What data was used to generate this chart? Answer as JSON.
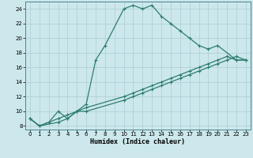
{
  "xlabel": "Humidex (Indice chaleur)",
  "bg_color": "#cce8ec",
  "grid_color": "#aacdd4",
  "line_color": "#2e7d6e",
  "xlim": [
    -0.5,
    23.5
  ],
  "ylim": [
    7.5,
    25.0
  ],
  "xticks": [
    0,
    1,
    2,
    3,
    4,
    5,
    6,
    7,
    8,
    9,
    10,
    11,
    12,
    13,
    14,
    15,
    16,
    17,
    18,
    19,
    20,
    21,
    22,
    23
  ],
  "yticks": [
    8,
    10,
    12,
    14,
    16,
    18,
    20,
    22,
    24
  ],
  "series1_x": [
    0,
    1,
    2,
    3,
    4,
    5,
    6,
    7,
    8,
    10,
    11,
    12,
    13,
    14,
    15,
    16,
    17,
    18,
    19,
    20,
    22,
    23
  ],
  "series1_y": [
    9,
    8,
    8.5,
    10,
    9,
    10,
    11,
    17,
    19,
    24,
    24.5,
    24,
    24.5,
    23,
    22,
    21,
    20,
    19,
    18.5,
    19,
    17,
    17
  ],
  "series2_x": [
    0,
    1,
    3,
    4,
    5,
    6,
    10,
    11,
    12,
    13,
    14,
    15,
    16,
    17,
    18,
    19,
    20,
    21,
    22,
    23
  ],
  "series2_y": [
    9,
    8,
    8.5,
    9,
    10,
    10,
    11.5,
    12,
    12.5,
    13,
    13.5,
    14,
    14.5,
    15,
    15.5,
    16,
    16.5,
    17,
    17.5,
    17
  ],
  "series3_x": [
    0,
    1,
    3,
    4,
    5,
    6,
    10,
    11,
    12,
    13,
    14,
    15,
    16,
    17,
    18,
    19,
    20,
    21,
    22,
    23
  ],
  "series3_y": [
    9,
    8,
    9,
    9.5,
    10,
    10.5,
    12,
    12.5,
    13,
    13.5,
    14,
    14.5,
    15,
    15.5,
    16,
    16.5,
    17,
    17.5,
    17,
    17
  ]
}
